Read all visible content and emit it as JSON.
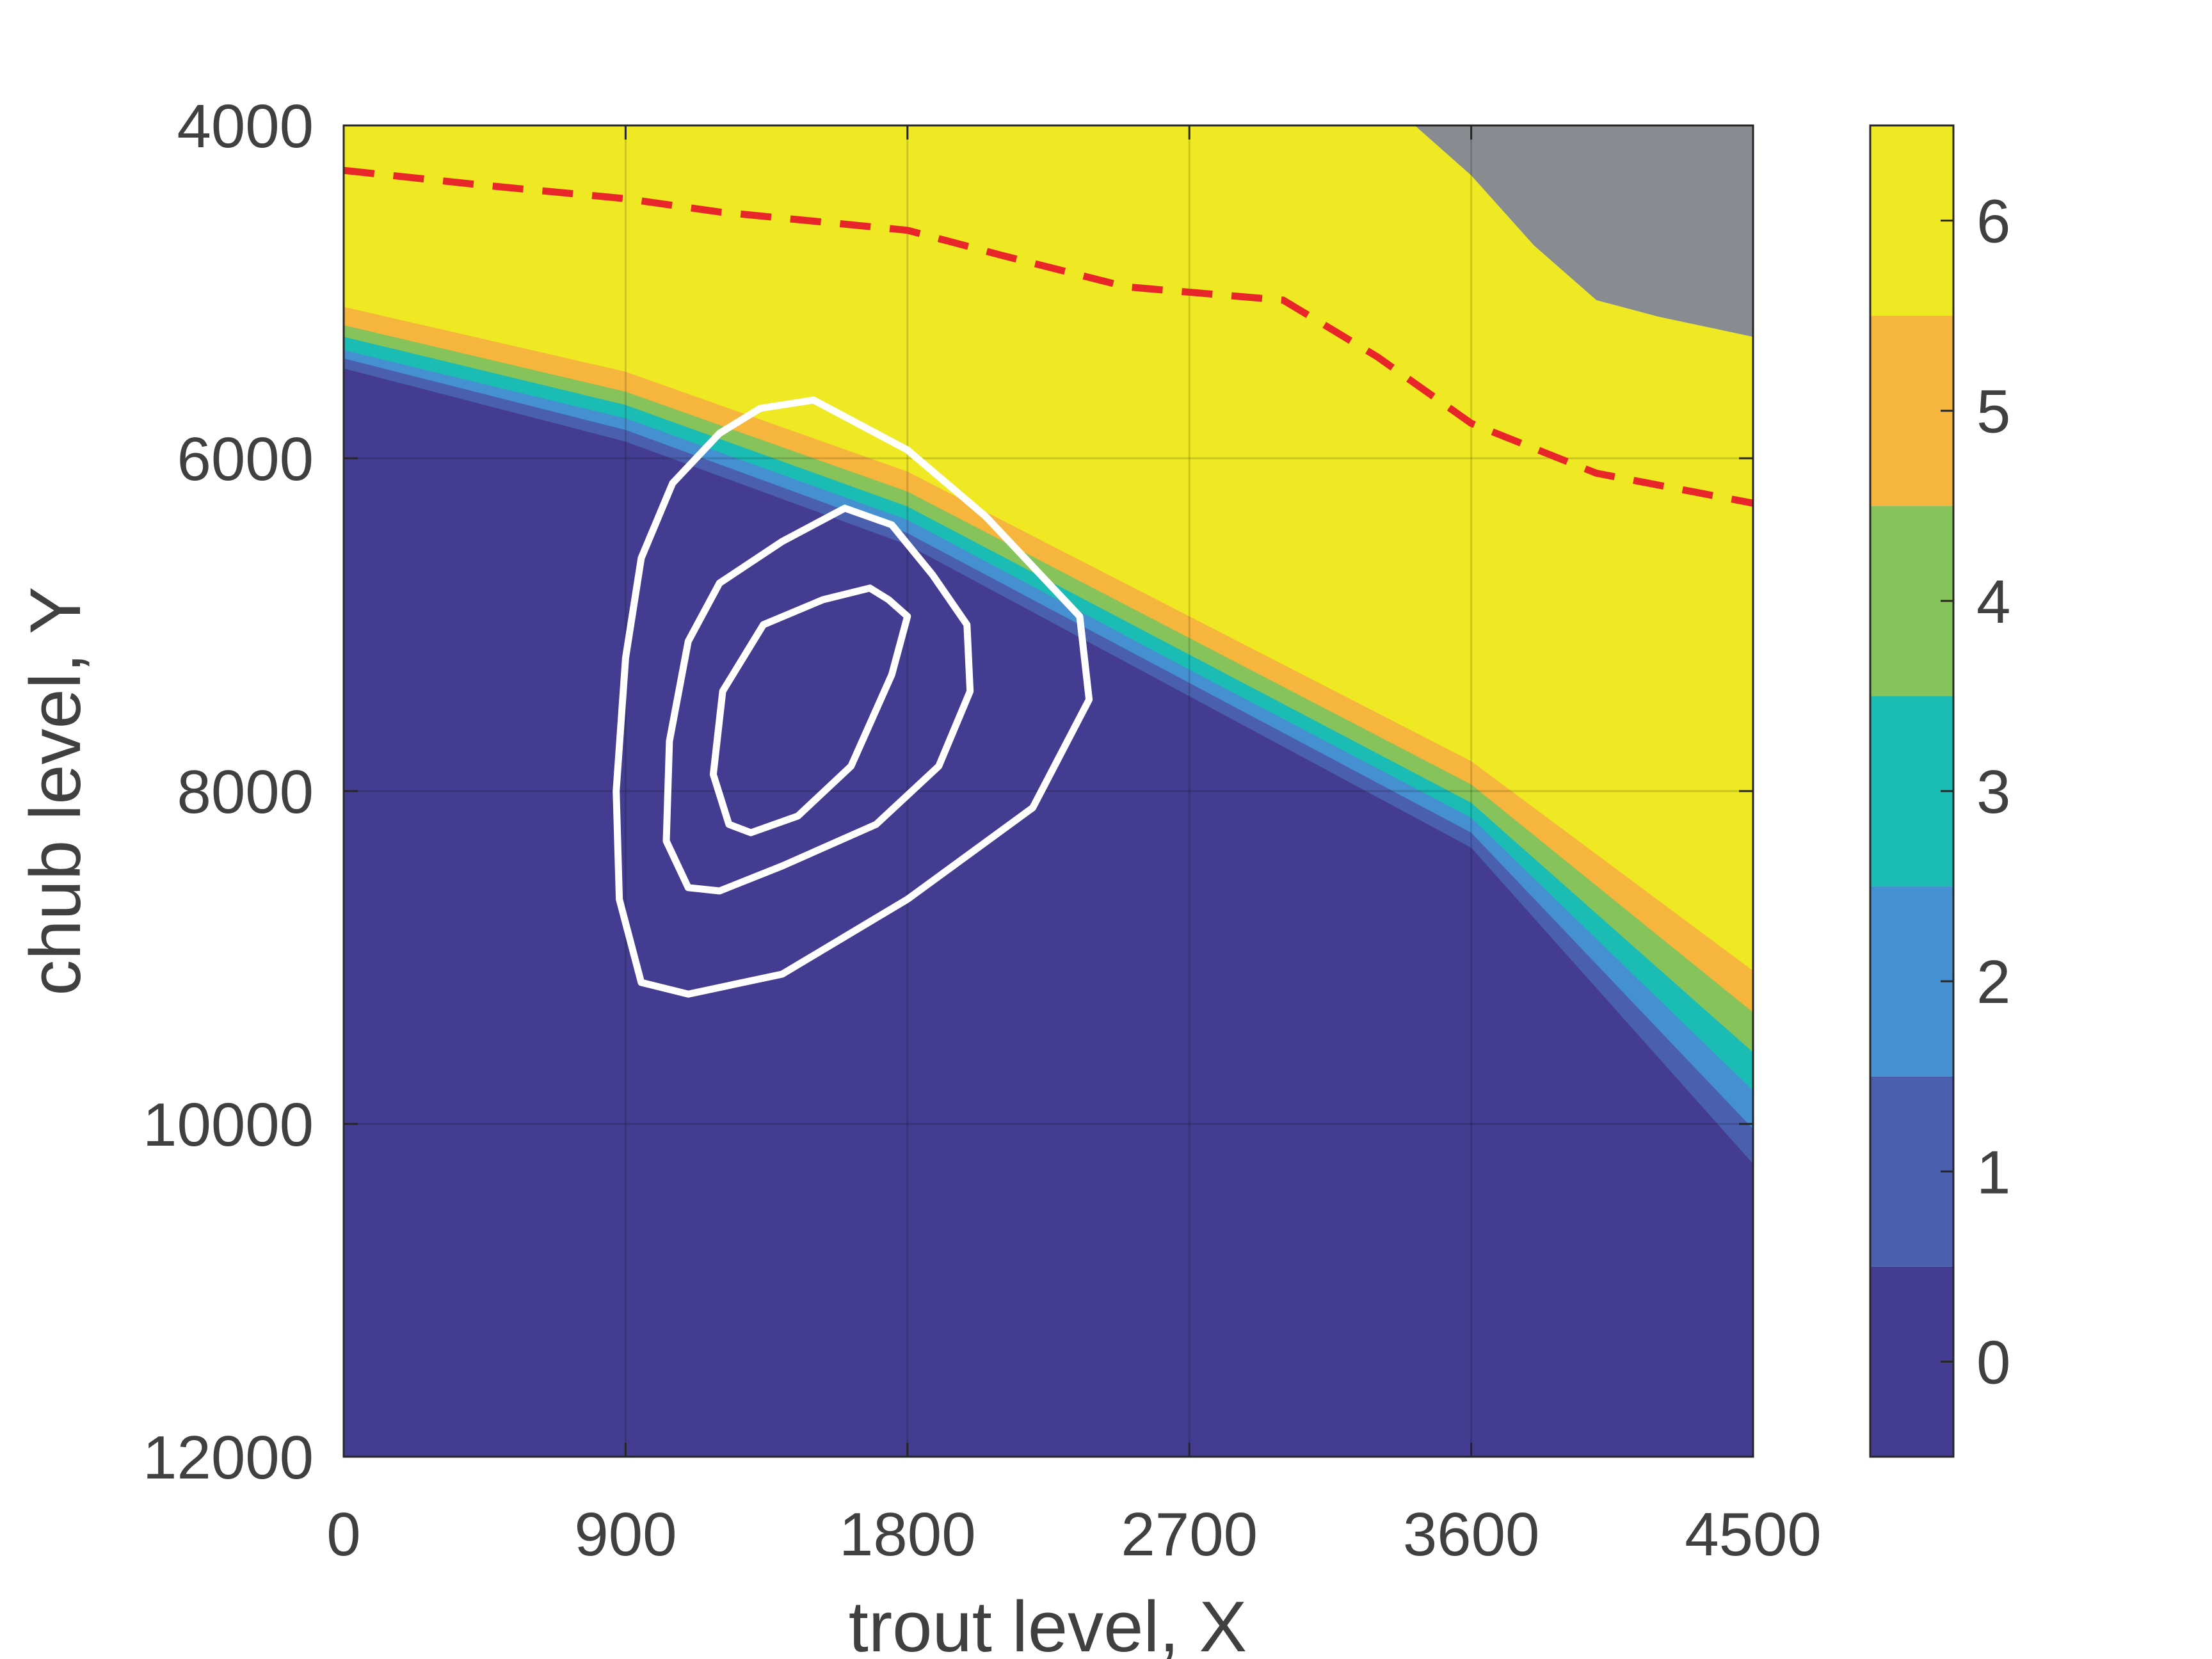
{
  "chart_data": {
    "type": "heatmap",
    "title": "",
    "xlabel": "trout level, X",
    "ylabel": "chub level, Y",
    "xlim": [
      0,
      4500
    ],
    "ylim": [
      4000,
      12000
    ],
    "y_reversed": true,
    "x_ticks": [
      "0",
      "900",
      "1800",
      "2700",
      "3600",
      "4500"
    ],
    "y_ticks": [
      "4000",
      "6000",
      "8000",
      "10000",
      "12000"
    ],
    "grid": true,
    "colorbar": {
      "ticks": [
        "0",
        "1",
        "2",
        "3",
        "4",
        "5",
        "6"
      ],
      "levels": [
        {
          "value": 0,
          "color": "#433c90"
        },
        {
          "value": 1,
          "color": "#4a5fae"
        },
        {
          "value": 2,
          "color": "#4590d0"
        },
        {
          "value": 3,
          "color": "#1bbcb4"
        },
        {
          "value": 4,
          "color": "#86c35a"
        },
        {
          "value": 5,
          "color": "#f6b53c"
        },
        {
          "value": 6,
          "color": "#efe924"
        }
      ],
      "range": [
        -0.5,
        6.5
      ]
    },
    "undefined_color": "#888b8f",
    "regions": {
      "level_boundaries_y": {
        "x": [
          0,
          900,
          1800,
          2700,
          3600,
          4500
        ],
        "y_6": [
          5090,
          5480,
          6080,
          6950,
          7820,
          9080
        ],
        "y_5": [
          5200,
          5600,
          6200,
          7080,
          7960,
          9330
        ],
        "y_4": [
          5270,
          5680,
          6290,
          7180,
          8070,
          9570
        ],
        "y_3": [
          5350,
          5760,
          6370,
          7270,
          8160,
          9800
        ],
        "y_2": [
          5400,
          5830,
          6450,
          7350,
          8250,
          10030
        ],
        "y_1": [
          5460,
          5900,
          6520,
          7430,
          8340,
          10240
        ]
      },
      "undefined_top_right": {
        "x": [
          3420,
          3600,
          3800,
          4000,
          4200,
          4500
        ],
        "y": [
          4000,
          4300,
          4720,
          5050,
          5150,
          5270
        ]
      }
    },
    "dashed_line": {
      "color": "#e8262a",
      "x": [
        0,
        450,
        900,
        1200,
        1800,
        2100,
        2500,
        3000,
        3300,
        3600,
        4000,
        4500
      ],
      "y": [
        4270,
        4360,
        4440,
        4520,
        4630,
        4780,
        4970,
        5050,
        5390,
        5790,
        6090,
        6270
      ]
    },
    "contours": {
      "color": "#ffffff",
      "lines": [
        {
          "x": [
            1330,
            1500,
            1800,
            2050,
            2350,
            2380,
            2200,
            1800,
            1400,
            1100,
            950,
            880,
            870,
            900,
            950,
            1050,
            1200,
            1330
          ],
          "y": [
            5700,
            5650,
            5950,
            6350,
            6950,
            7450,
            8100,
            8650,
            9100,
            9220,
            9150,
            8650,
            8000,
            7200,
            6600,
            6150,
            5850,
            5700
          ]
        },
        {
          "x": [
            1600,
            1750,
            1880,
            1990,
            2000,
            1900,
            1700,
            1400,
            1200,
            1100,
            1030,
            1040,
            1100,
            1200,
            1400,
            1600
          ],
          "y": [
            6300,
            6400,
            6700,
            7000,
            7400,
            7850,
            8200,
            8450,
            8600,
            8580,
            8300,
            7700,
            7100,
            6750,
            6500,
            6300
          ]
        },
        {
          "x": [
            1740,
            1800,
            1750,
            1620,
            1450,
            1300,
            1230,
            1180,
            1210,
            1340,
            1530,
            1680,
            1740
          ],
          "y": [
            6850,
            6950,
            7300,
            7850,
            8150,
            8250,
            8200,
            7900,
            7400,
            7000,
            6850,
            6780,
            6850
          ]
        }
      ]
    }
  }
}
